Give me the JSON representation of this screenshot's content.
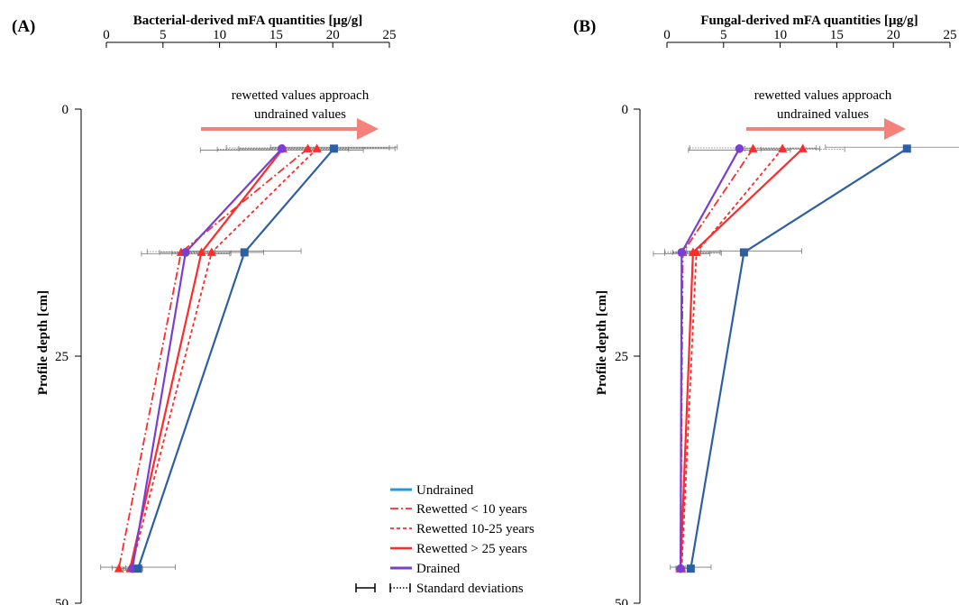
{
  "chart_data": [
    {
      "type": "line",
      "panel_label": "(A)",
      "title": "Bacterial-derived mFA quantities [µg/g]",
      "xlabel": "Bacterial-derived mFA quantities [µg/g]",
      "ylabel": "Profile depth  [cm]",
      "xlim": [
        0,
        25
      ],
      "ylim": [
        0,
        50
      ],
      "x_ticks": [
        "0",
        "5",
        "10",
        "15",
        "20",
        "25"
      ],
      "y_ticks": [
        "0",
        "25",
        "50"
      ],
      "annotation_line1": "rewetted values approach",
      "annotation_line2": "undrained values",
      "series": [
        {
          "name": "Undrained",
          "color": "#2e5fa3",
          "marker": "square",
          "dash": "solid",
          "points": [
            {
              "x": 20.1,
              "y": 4,
              "err": 5.6
            },
            {
              "x": 12.2,
              "y": 14.5,
              "err": 5.0
            },
            {
              "x": 2.8,
              "y": 46.5,
              "err": 3.3
            }
          ]
        },
        {
          "name": "Rewetted < 10 years",
          "color": "#ff2a2a",
          "marker": "triangle",
          "dash": "dashdot",
          "points": [
            {
              "x": 17.8,
              "y": 4,
              "err": 7.2
            },
            {
              "x": 6.6,
              "y": 14.5,
              "err": 3.0
            },
            {
              "x": 1.1,
              "y": 46.5,
              "err": 0.6
            }
          ]
        },
        {
          "name": "Rewetted 10-25 years",
          "color": "#ff2a2a",
          "marker": "triangle",
          "dash": "dotted",
          "points": [
            {
              "x": 18.6,
              "y": 4,
              "err": 6.9
            },
            {
              "x": 9.3,
              "y": 14.5,
              "err": 4.6
            },
            {
              "x": 2.2,
              "y": 46.5,
              "err": 1.0
            }
          ]
        },
        {
          "name": "Rewetted > 25 years",
          "color": "#ff2a2a",
          "marker": "triangle",
          "dash": "solid",
          "points": [
            {
              "x": 15.6,
              "y": 4,
              "err": 5.8
            },
            {
              "x": 8.4,
              "y": 14.5,
              "err": 2.6
            },
            {
              "x": 2.1,
              "y": 46.5,
              "err": 0.9
            }
          ]
        },
        {
          "name": "Drained",
          "color": "#7a3fd0",
          "marker": "circle",
          "dash": "solid",
          "points": [
            {
              "x": 15.5,
              "y": 4,
              "err": 7.2
            },
            {
              "x": 7.0,
              "y": 14.5,
              "err": 3.9
            },
            {
              "x": 2.3,
              "y": 46.5,
              "err": 0.8
            }
          ]
        }
      ]
    },
    {
      "type": "line",
      "panel_label": "(B)",
      "title": "Fungal-derived mFA quantities [µg/g]",
      "xlabel": "Fungal-derived mFA quantities [µg/g]",
      "ylabel": "Profile depth  [cm]",
      "xlim": [
        0,
        25
      ],
      "ylim": [
        0,
        50
      ],
      "x_ticks": [
        "0",
        "5",
        "10",
        "15",
        "20",
        "25"
      ],
      "y_ticks": [
        "0",
        "25",
        "50"
      ],
      "annotation_line1": "rewetted values approach",
      "annotation_line2": "undrained values",
      "series": [
        {
          "name": "Undrained",
          "color": "#2e5fa3",
          "marker": "square",
          "dash": "solid",
          "points": [
            {
              "x": 21.2,
              "y": 4,
              "err": 7.2
            },
            {
              "x": 6.8,
              "y": 14.5,
              "err": 5.1
            },
            {
              "x": 2.1,
              "y": 46.5,
              "err": 1.8
            }
          ]
        },
        {
          "name": "Rewetted < 10 years",
          "color": "#ff2a2a",
          "marker": "triangle",
          "dash": "dashdot",
          "points": [
            {
              "x": 7.6,
              "y": 4,
              "err": 5.6
            },
            {
              "x": 1.4,
              "y": 14.5,
              "err": 1.6
            },
            {
              "x": 1.2,
              "y": 46.5,
              "err": 0.4
            }
          ]
        },
        {
          "name": "Rewetted 10-25 years",
          "color": "#ff2a2a",
          "marker": "triangle",
          "dash": "dotted",
          "points": [
            {
              "x": 10.2,
              "y": 4,
              "err": 3.3
            },
            {
              "x": 2.6,
              "y": 14.5,
              "err": 2.1
            },
            {
              "x": 1.3,
              "y": 46.5,
              "err": 0.5
            }
          ]
        },
        {
          "name": "Rewetted > 25 years",
          "color": "#ff2a2a",
          "marker": "triangle",
          "dash": "solid",
          "points": [
            {
              "x": 12.0,
              "y": 4,
              "err": 3.7
            },
            {
              "x": 2.3,
              "y": 14.5,
              "err": 2.5
            },
            {
              "x": 1.2,
              "y": 46.5,
              "err": 0.4
            }
          ]
        },
        {
          "name": "Drained",
          "color": "#7a3fd0",
          "marker": "circle",
          "dash": "solid",
          "points": [
            {
              "x": 6.4,
              "y": 4,
              "err": 4.5
            },
            {
              "x": 1.3,
              "y": 14.5,
              "err": 2.5
            },
            {
              "x": 1.2,
              "y": 46.5,
              "err": 0.3
            }
          ]
        }
      ]
    }
  ],
  "legend": {
    "items": [
      "Undrained",
      "Rewetted < 10 years",
      "Rewetted 10-25 years",
      "Rewetted > 25 years",
      "Drained"
    ],
    "std_label": "Standard deviations"
  },
  "colors": {
    "undrained": "#2e5fa3",
    "undrained_legend": "#1e9be0",
    "rewetted": "#ff2a2a",
    "drained": "#7a3fd0",
    "arrow": "#f4827a"
  }
}
